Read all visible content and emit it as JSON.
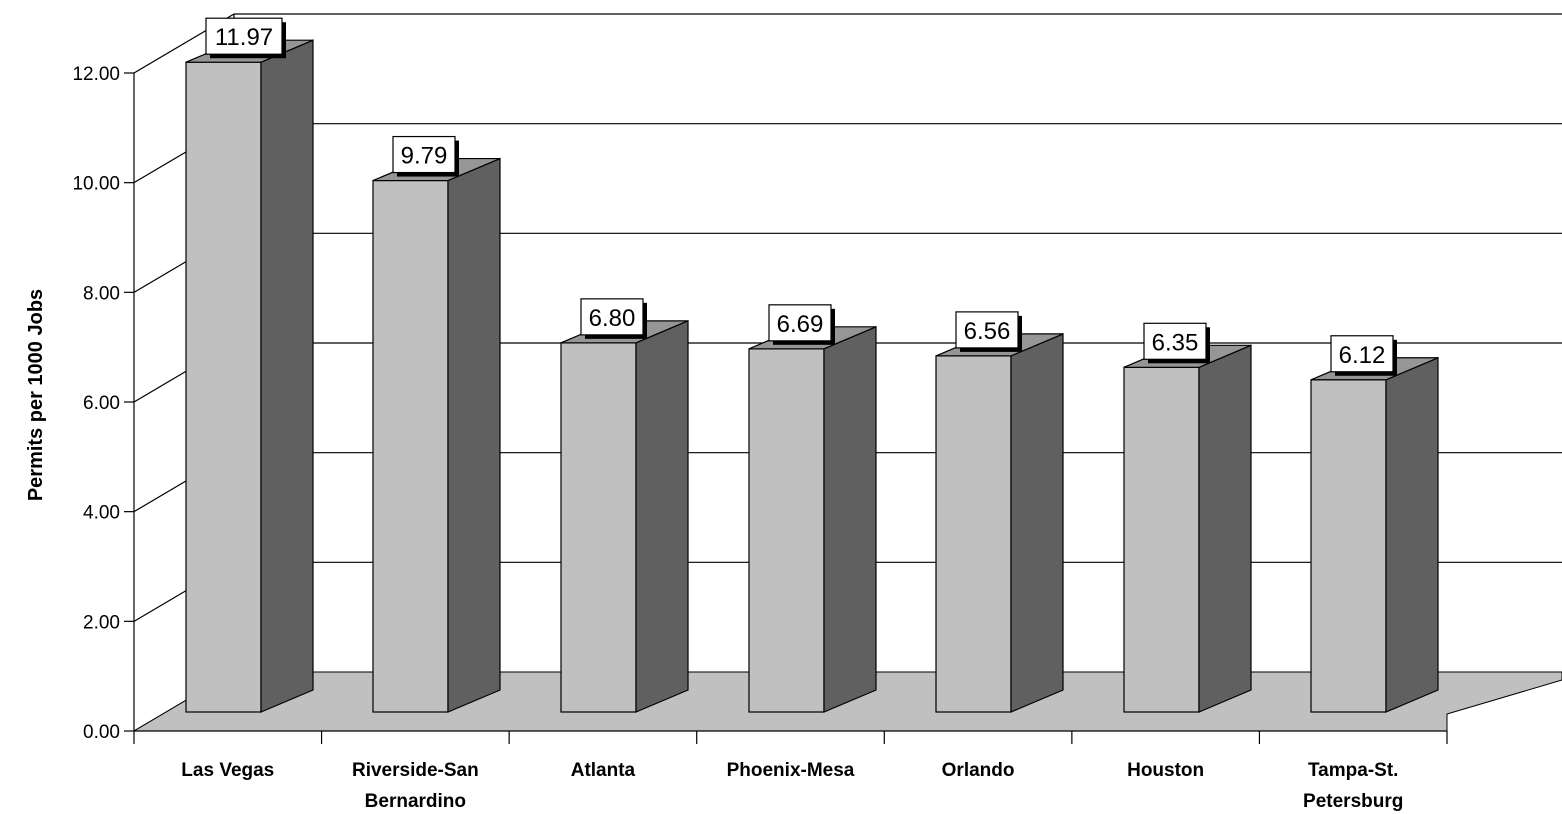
{
  "chart_data": {
    "type": "bar",
    "title": "",
    "xlabel": "",
    "ylabel": "Permits per 1000 Jobs",
    "ylim": [
      0,
      12
    ],
    "y_ticks": [
      "0.00",
      "2.00",
      "4.00",
      "6.00",
      "8.00",
      "10.00",
      "12.00"
    ],
    "categories": [
      [
        "Las Vegas"
      ],
      [
        "Riverside-San",
        "Bernardino"
      ],
      [
        "Atlanta"
      ],
      [
        "Phoenix-Mesa"
      ],
      [
        "Orlando"
      ],
      [
        "Houston"
      ],
      [
        "Tampa-St.",
        "Petersburg"
      ]
    ],
    "values": [
      11.97,
      9.79,
      6.8,
      6.69,
      6.56,
      6.35,
      6.12
    ],
    "value_labels": [
      "11.97",
      "9.79",
      "6.80",
      "6.69",
      "6.56",
      "6.35",
      "6.12"
    ],
    "grid": true,
    "legend": "none",
    "style": "3d",
    "colors": {
      "bar_front": "#c0c0c0",
      "bar_side": "#606060",
      "bar_top": "#969696",
      "floor": "#c0c0c0"
    }
  }
}
